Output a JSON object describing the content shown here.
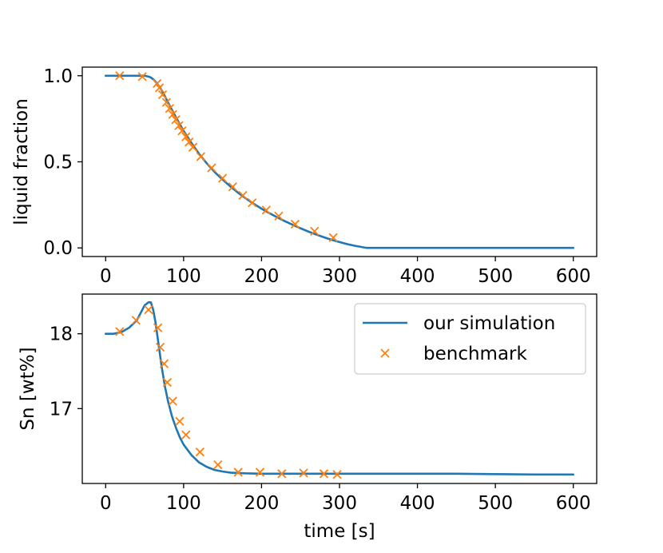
{
  "colors": {
    "simulation": "#1f77b4",
    "benchmark": "#ff7f0e"
  },
  "chart_data": [
    {
      "type": "line",
      "title": "",
      "xlabel": "",
      "ylabel": "liquid fraction",
      "xlim": [
        -30,
        630
      ],
      "ylim": [
        -0.05,
        1.05
      ],
      "xticks": [
        0,
        100,
        200,
        300,
        400,
        500,
        600
      ],
      "xtick_labels": [
        "0",
        "100",
        "200",
        "300",
        "400",
        "500",
        "600"
      ],
      "yticks": [
        0.0,
        0.5,
        1.0
      ],
      "ytick_labels": [
        "0.0",
        "0.5",
        "1.0"
      ],
      "legend": false,
      "series": [
        {
          "kind": "line",
          "x": [
            0,
            20,
            40,
            50,
            55,
            58,
            62,
            66,
            70,
            75,
            80,
            90,
            100,
            110,
            120,
            130,
            140,
            150,
            160,
            170,
            180,
            190,
            200,
            210,
            220,
            230,
            240,
            250,
            260,
            270,
            280,
            290,
            300,
            310,
            320,
            330,
            335,
            340,
            350,
            400,
            450,
            500,
            550,
            600
          ],
          "y": [
            1.0,
            1.0,
            1.0,
            1.0,
            0.995,
            0.99,
            0.975,
            0.955,
            0.93,
            0.89,
            0.845,
            0.76,
            0.68,
            0.61,
            0.545,
            0.49,
            0.44,
            0.397,
            0.357,
            0.32,
            0.287,
            0.256,
            0.228,
            0.202,
            0.178,
            0.155,
            0.134,
            0.114,
            0.095,
            0.078,
            0.062,
            0.047,
            0.034,
            0.022,
            0.012,
            0.004,
            0.0,
            0.0,
            0.0,
            0.0,
            0.0,
            0.0,
            0.0,
            0.0
          ]
        },
        {
          "kind": "markers",
          "x": [
            18,
            47,
            66,
            69,
            73,
            78,
            82,
            86,
            90,
            94,
            98,
            103,
            107,
            112,
            122,
            136,
            150,
            163,
            176,
            188,
            206,
            222,
            243,
            268,
            292
          ],
          "y": [
            1.0,
            0.995,
            0.955,
            0.93,
            0.89,
            0.845,
            0.81,
            0.775,
            0.745,
            0.71,
            0.68,
            0.645,
            0.615,
            0.585,
            0.53,
            0.465,
            0.405,
            0.355,
            0.305,
            0.262,
            0.22,
            0.185,
            0.138,
            0.097,
            0.06
          ]
        }
      ]
    },
    {
      "type": "line",
      "title": "",
      "xlabel": "time [s]",
      "ylabel": "Sn [wt%]",
      "xlim": [
        -30,
        630
      ],
      "ylim": [
        16.0,
        18.53
      ],
      "xticks": [
        0,
        100,
        200,
        300,
        400,
        500,
        600
      ],
      "xtick_labels": [
        "0",
        "100",
        "200",
        "300",
        "400",
        "500",
        "600"
      ],
      "yticks": [
        17,
        18
      ],
      "ytick_labels": [
        "17",
        "18"
      ],
      "legend": true,
      "legend_position": "top-right",
      "series": [
        {
          "name": "our simulation",
          "kind": "line",
          "x": [
            0,
            10,
            20,
            30,
            40,
            45,
            50,
            55,
            58,
            61,
            64,
            68,
            72,
            76,
            80,
            85,
            90,
            95,
            100,
            110,
            120,
            130,
            140,
            150,
            160,
            170,
            180,
            200,
            250,
            300,
            350,
            400,
            450,
            500,
            550,
            600
          ],
          "y": [
            18.0,
            18.0,
            18.02,
            18.08,
            18.18,
            18.28,
            18.38,
            18.42,
            18.42,
            18.32,
            18.15,
            17.85,
            17.55,
            17.3,
            17.1,
            16.9,
            16.75,
            16.62,
            16.52,
            16.38,
            16.28,
            16.22,
            16.18,
            16.16,
            16.145,
            16.14,
            16.135,
            16.13,
            16.13,
            16.13,
            16.13,
            16.13,
            16.13,
            16.125,
            16.12,
            16.12
          ]
        },
        {
          "name": "benchmark",
          "kind": "markers",
          "x": [
            18,
            39,
            55,
            67,
            70,
            75,
            79,
            86,
            95,
            103,
            121,
            144,
            170,
            198,
            226,
            254,
            280,
            297
          ],
          "y": [
            18.03,
            18.18,
            18.32,
            18.08,
            17.82,
            17.6,
            17.35,
            17.1,
            16.83,
            16.65,
            16.42,
            16.25,
            16.15,
            16.15,
            16.13,
            16.14,
            16.13,
            16.12
          ]
        }
      ]
    }
  ]
}
